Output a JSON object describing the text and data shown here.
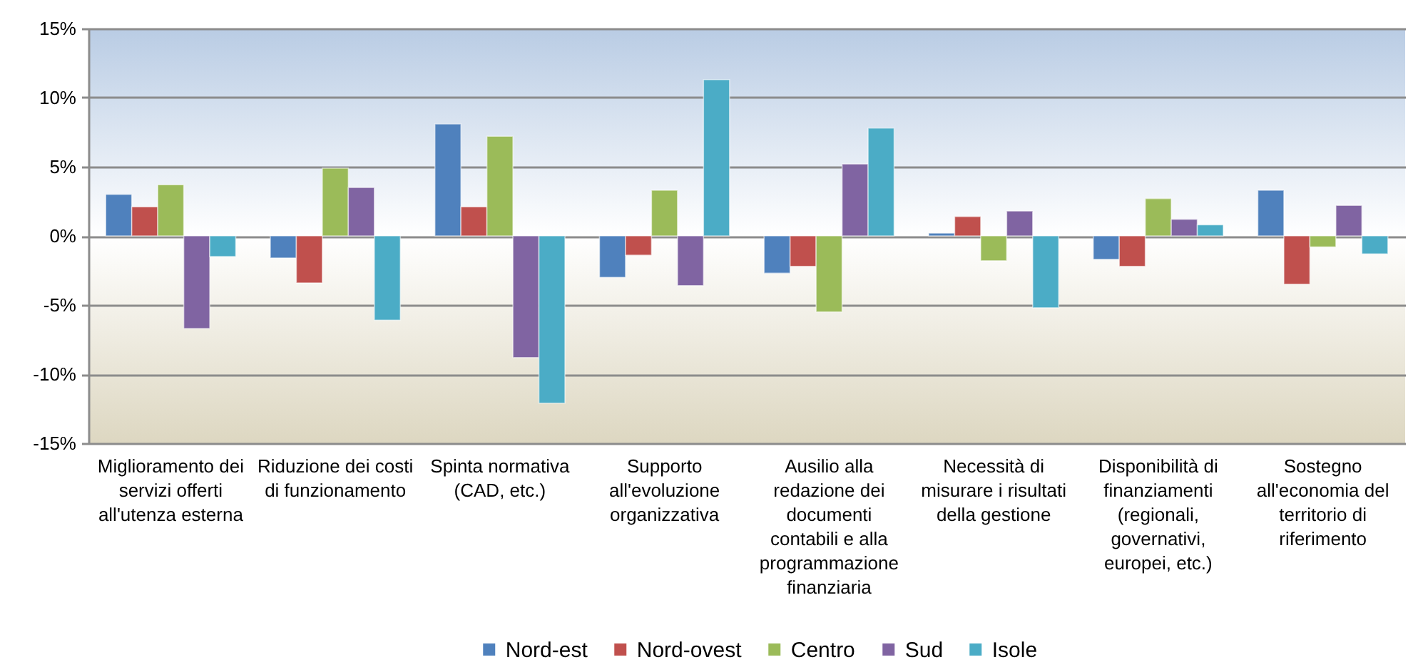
{
  "chart_data": {
    "type": "bar",
    "categories": [
      "Miglioramento dei servizi offerti all'utenza esterna",
      "Riduzione dei costi di funzionamento",
      "Spinta normativa (CAD, etc.)",
      "Supporto all'evoluzione organizzativa",
      "Ausilio alla redazione dei documenti contabili e alla programmazione finanziaria",
      "Necessità di misurare i risultati della gestione",
      "Disponibilità di finanziamenti (regionali, governativi, europei, etc.)",
      "Sostegno all'economia del territorio di riferimento"
    ],
    "series": [
      {
        "name": "Nord-est",
        "color": "#4f81bd",
        "values": [
          3.0,
          -1.6,
          8.1,
          -3.0,
          -2.7,
          0.2,
          -1.7,
          3.3
        ]
      },
      {
        "name": "Nord-ovest",
        "color": "#c0504d",
        "values": [
          2.1,
          -3.4,
          2.1,
          -1.4,
          -2.2,
          1.4,
          -2.2,
          -3.5
        ]
      },
      {
        "name": "Centro",
        "color": "#9bbb59",
        "values": [
          3.7,
          4.9,
          7.2,
          3.3,
          -5.5,
          -1.8,
          2.7,
          -0.8
        ]
      },
      {
        "name": "Sud",
        "color": "#8064a2",
        "values": [
          -6.7,
          3.5,
          -8.8,
          -3.6,
          5.2,
          1.8,
          1.2,
          2.2
        ]
      },
      {
        "name": "Isole",
        "color": "#4bacc6",
        "values": [
          -1.5,
          -6.1,
          -12.1,
          11.3,
          7.8,
          -5.2,
          0.8,
          -1.3
        ]
      }
    ],
    "ylim": [
      -15,
      15
    ],
    "yticks": [
      {
        "value": -15,
        "label": "-15%"
      },
      {
        "value": -10,
        "label": "-10%"
      },
      {
        "value": -5,
        "label": "-5%"
      },
      {
        "value": 0,
        "label": "0%"
      },
      {
        "value": 5,
        "label": "5%"
      },
      {
        "value": 10,
        "label": "10%"
      },
      {
        "value": 15,
        "label": "15%"
      }
    ],
    "grid": "y",
    "legend": "bottom"
  }
}
